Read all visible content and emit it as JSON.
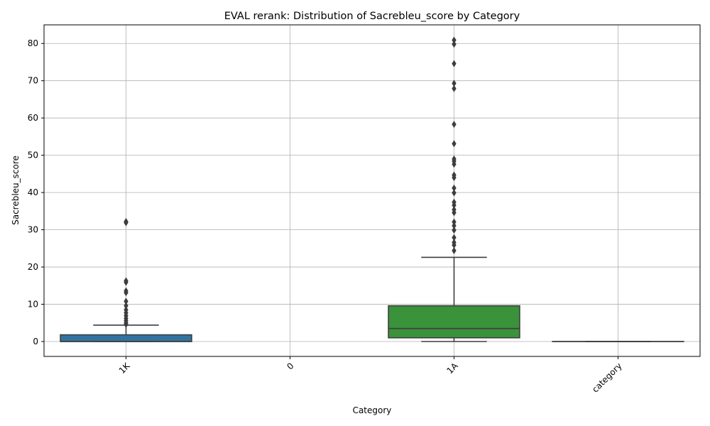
{
  "chart_data": {
    "type": "box",
    "title": "EVAL rerank: Distribution of Sacrebleu_score by Category",
    "xlabel": "Category",
    "ylabel": "Sacrebleu_score",
    "ylim": [
      -4,
      85
    ],
    "yticks": [
      0,
      10,
      20,
      30,
      40,
      50,
      60,
      70,
      80
    ],
    "grid": true,
    "categories": [
      "1K",
      "0",
      "1A",
      "category"
    ],
    "boxes": [
      {
        "category": "1K",
        "color": "#3274a1",
        "q1": 0,
        "median": 0,
        "q3": 1.8,
        "whisker_low": 0,
        "whisker_high": 4.4,
        "outliers": [
          4.6,
          5.0,
          5.6,
          6.2,
          6.9,
          7.7,
          8.5,
          9.6,
          10.8,
          13.1,
          13.6,
          15.9,
          16.3,
          31.9,
          32.2
        ]
      },
      {
        "category": "0",
        "color": null,
        "empty": true
      },
      {
        "category": "1A",
        "color": "#3a923a",
        "q1": 1.0,
        "median": 3.5,
        "q3": 9.6,
        "whisker_low": 0,
        "whisker_high": 22.6,
        "outliers": [
          24.4,
          25.9,
          26.6,
          27.9,
          29.9,
          31.1,
          32.1,
          34.6,
          35.4,
          36.6,
          37.4,
          39.9,
          41.2,
          44.0,
          44.7,
          47.6,
          48.4,
          49.0,
          53.1,
          58.3,
          67.9,
          69.3,
          74.6,
          79.8,
          80.9
        ]
      },
      {
        "category": "category",
        "color": "#c03d3e",
        "q1": 0,
        "median": 0,
        "q3": 0,
        "whisker_low": 0,
        "whisker_high": 0,
        "outliers": []
      }
    ]
  }
}
